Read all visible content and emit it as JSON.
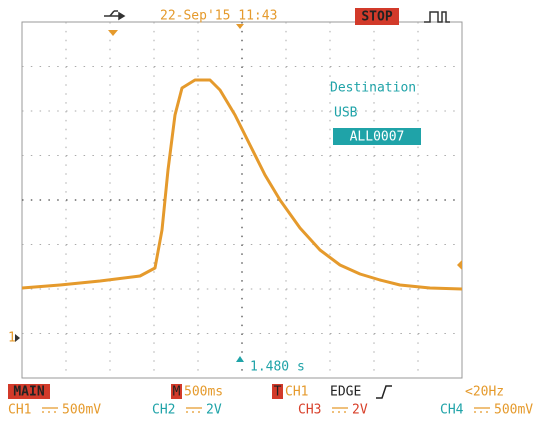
{
  "header": {
    "datetime": "22-Sep'15 11:43",
    "status": "STOP"
  },
  "message": {
    "lines": [
      "Destination",
      "USB"
    ],
    "file": "ALL0007"
  },
  "cursor": {
    "time": "1.480 s"
  },
  "channel_marker": "1",
  "footer": {
    "mode": "MAIN",
    "timebase_marker": "M",
    "timebase": "500ms",
    "trigger_marker": "T",
    "trigger_source": "CH1",
    "trigger_type": "EDGE",
    "trigger_frequency": "<20Hz",
    "channels": [
      {
        "name": "CH1",
        "scale": "500mV"
      },
      {
        "name": "CH2",
        "scale": "2V"
      },
      {
        "name": "CH3",
        "scale": "2V"
      },
      {
        "name": "CH4",
        "scale": "500mV"
      }
    ]
  }
}
